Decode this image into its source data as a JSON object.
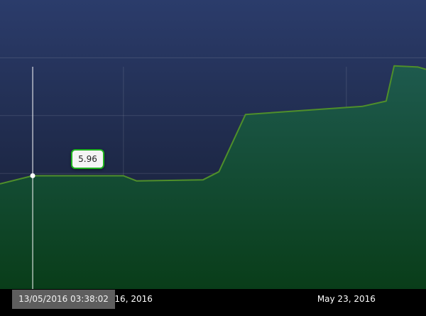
{
  "chart_data": {
    "type": "area",
    "x_ticks": [
      {
        "label": "May 16, 2016",
        "x": "2016-05-16"
      },
      {
        "label": "May 23, 2016",
        "x": "2016-05-23"
      }
    ],
    "series": [
      {
        "points": [
          {
            "x": "2016-05-12 03:00",
            "y": 5.82
          },
          {
            "x": "2016-05-13 03:38",
            "y": 5.96
          },
          {
            "x": "2016-05-14 00:00",
            "y": 5.96
          },
          {
            "x": "2016-05-16 00:00",
            "y": 5.96
          },
          {
            "x": "2016-05-16 10:00",
            "y": 5.87
          },
          {
            "x": "2016-05-18 12:00",
            "y": 5.89
          },
          {
            "x": "2016-05-19 00:00",
            "y": 6.03
          },
          {
            "x": "2016-05-19 20:00",
            "y": 7.02
          },
          {
            "x": "2016-05-23 12:00",
            "y": 7.16
          },
          {
            "x": "2016-05-24 06:00",
            "y": 7.25
          },
          {
            "x": "2016-05-24 12:00",
            "y": 7.86
          },
          {
            "x": "2016-05-25 06:00",
            "y": 7.84
          },
          {
            "x": "2016-05-25 12:00",
            "y": 7.8
          }
        ]
      }
    ],
    "y_range": [
      4.0,
      9.0
    ],
    "x_range": [
      "2016-05-12 03:00",
      "2016-05-25 12:00"
    ],
    "grid": true,
    "hover": {
      "x": "2016-05-13 03:38",
      "time_label": "13/05/2016 03:38:02",
      "value_label": "5.96"
    },
    "colors": {
      "background_top": "#2b3c6b",
      "background_bottom": "#141a2d",
      "area_top": "#1e5a4e",
      "area_bottom": "#093d19",
      "line": "#4f8f2a",
      "tooltip_border": "#1fb41f",
      "axis_label": "#ffffff"
    }
  }
}
